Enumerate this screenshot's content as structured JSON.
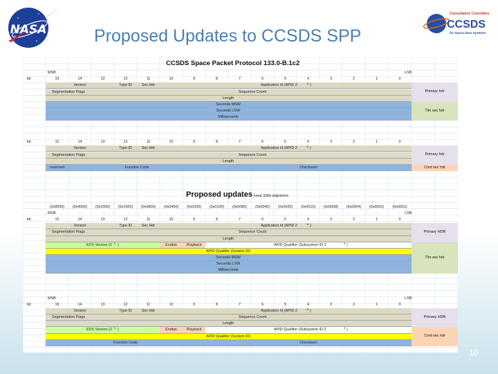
{
  "slide": {
    "title": "Proposed Updates to CCSDS SPP",
    "page": "10"
  },
  "logos": {
    "nasa": "NASA",
    "ccsds": "CCSDS",
    "ccsds_line1": "Consultative Committee",
    "ccsds_line2": "for Space Data Systems"
  },
  "colors": {
    "grid": "#d4e2f1",
    "tan": "#ddd9c4",
    "blue": "#8db4e2",
    "green": "#d7e4bc",
    "yellow": "#ffff00",
    "lightgreen": "#ccff99",
    "salmon": "#fcd5b4",
    "lavender": "#e6e0ec"
  },
  "doc": {
    "heading": "CCSDS Space Packet Protocol 133.0-B.1c2",
    "proposed_heading": "Proposed updates",
    "proposed_note": "keep 32bit alignment",
    "msb": "MSB",
    "lsb": "LSB",
    "bit": "bit",
    "bit_numbers": [
      "15",
      "14",
      "13",
      "12",
      "11",
      "10",
      "9",
      "8",
      "7",
      "6",
      "5",
      "4",
      "3",
      "2",
      "1",
      "0"
    ],
    "hex_masks": [
      "(0x8000)",
      "(0x4000)",
      "(0x2000)",
      "(0x1000)",
      "(0x0800)",
      "(0x0400)",
      "(0x0200)",
      "(0x0100)",
      "(0x0080)",
      "(0x0040)",
      "(0x0020)",
      "(0x0010)",
      "(0x0008)",
      "(0x0004)",
      "(0x0002)",
      "(0x0001)"
    ],
    "fields": {
      "version": "Version",
      "type_id": "Type ID",
      "sec_hdr": "Sec Hdr",
      "apid": "Application Id (APID 2",
      "seg_flags": "Segmentation Flags",
      "seq_count": "Sequence Count",
      "length": "Length",
      "seconds_msw": "Seconds MSW",
      "seconds_lsw": "Seconds LSW",
      "milliseconds": "Milliseconds",
      "reserved": "reserved",
      "function_code": "Function Code",
      "checksum": "Checksum",
      "eds_version": "EDS Version (2",
      "endian": "Endian",
      "playback": "Playback",
      "apid_qualifier": "APID Qualifier (System ID)",
      "apid_qualifier_sub": "APID Qualifier (Subsystem ID 2",
      "exp11": "11",
      "exp5": "5",
      "exp8": "8",
      "close_paren": ")"
    },
    "side_labels": {
      "primary_hdr": "Primary hdr",
      "tlm_sec_hdr": "Tlm sec hdr",
      "cmd_sec_hdr": "Cmd sec hdr",
      "primary_hdr_caps": "Primary HDR"
    }
  }
}
